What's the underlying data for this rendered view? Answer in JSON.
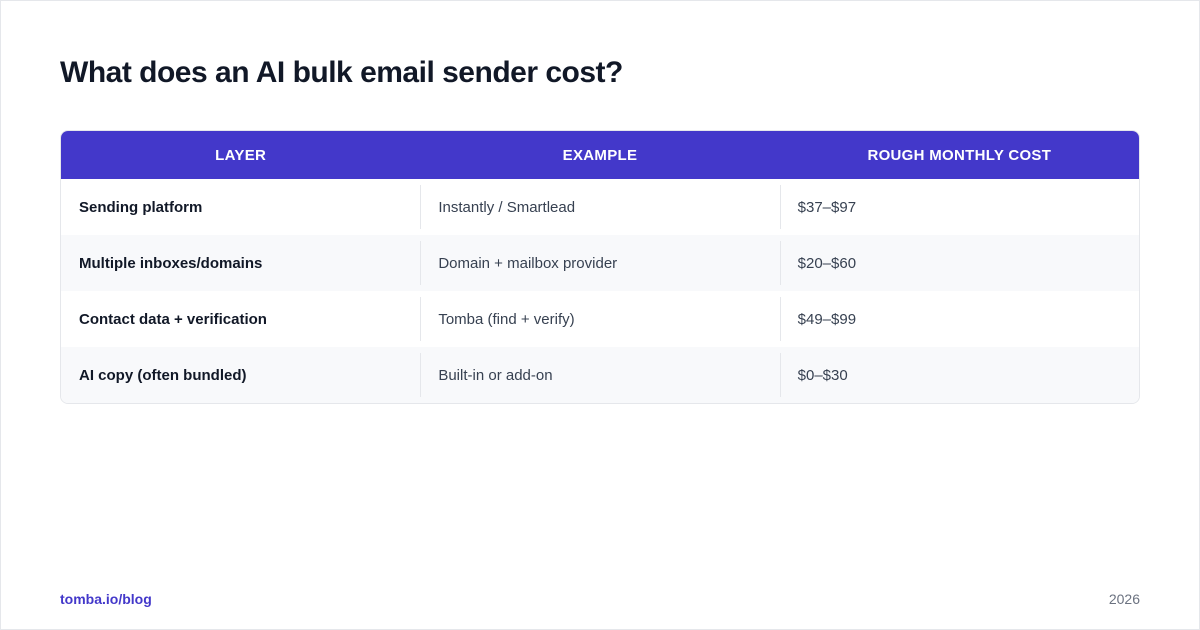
{
  "title": "What does an AI bulk email sender cost?",
  "table": {
    "headers": [
      "LAYER",
      "EXAMPLE",
      "ROUGH MONTHLY COST"
    ],
    "rows": [
      [
        "Sending platform",
        "Instantly / Smartlead",
        "$37–$97"
      ],
      [
        "Multiple inboxes/domains",
        "Domain + mailbox provider",
        "$20–$60"
      ],
      [
        "Contact data + verification",
        "Tomba (find + verify)",
        "$49–$99"
      ],
      [
        "AI copy (often bundled)",
        "Built-in or add-on",
        "$0–$30"
      ]
    ]
  },
  "footer": {
    "link": "tomba.io/blog",
    "year": "2026"
  },
  "colors": {
    "header_bg": "#4338ca",
    "title_text": "#111827",
    "alt_row_bg": "#f8f9fb"
  }
}
